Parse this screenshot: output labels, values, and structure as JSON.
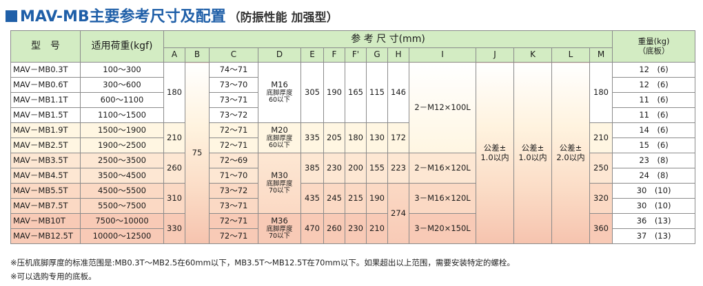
{
  "title": {
    "marker": "■",
    "main": "MAV-MB主要参考尺寸及配置",
    "sub": "（防振性能 加强型）"
  },
  "table": {
    "header": {
      "model": "型　号",
      "load": "适用荷重(kgf)",
      "dims": "参 考 尺 寸(mm)",
      "weight_line1": "重量(kg)",
      "weight_line2": "（底板）",
      "cols": [
        "A",
        "B",
        "C",
        "D",
        "E",
        "F",
        "F'",
        "G",
        "H",
        "I",
        "J",
        "K",
        "L",
        "M"
      ]
    },
    "rows": [
      {
        "model": "MAV－MB0.3T",
        "load": "100～300",
        "c": "74～71",
        "weight": "12　(6)"
      },
      {
        "model": "MAV－MB0.6T",
        "load": "300～600",
        "c": "73～70",
        "weight": "12　(6)"
      },
      {
        "model": "MAV－MB1.1T",
        "load": "600～1100",
        "c": "73～71",
        "weight": "11　(6)"
      },
      {
        "model": "MAV－MB1.5T",
        "load": "1100～1500",
        "c": "73～72",
        "weight": "11　(6)"
      },
      {
        "model": "MAV－MB1.9T",
        "load": "1500～1900",
        "c": "72～71",
        "weight": "14　(6)"
      },
      {
        "model": "MAV－MB2.5T",
        "load": "1900～2500",
        "c": "72～71",
        "weight": "15　(6)"
      },
      {
        "model": "MAV－MB3.5T",
        "load": "2500～3500",
        "c": "72～69",
        "weight": "23　(8)"
      },
      {
        "model": "MAV－MB4.5T",
        "load": "3500～4500",
        "c": "71～70",
        "weight": "24　(8)"
      },
      {
        "model": "MAV－MB5.5T",
        "load": "4500～5500",
        "c": "73～72",
        "weight": "30　(10)"
      },
      {
        "model": "MAV－MB7.5T",
        "load": "5500～7500",
        "c": "73～71",
        "weight": "30　(10)"
      },
      {
        "model": "MAV－MB10T",
        "load": "7500～10000",
        "c": "72～71",
        "weight": "36　(13)"
      },
      {
        "model": "MAV－MB12.5T",
        "load": "10000～12500",
        "c": "72～71",
        "weight": "37　(13)"
      }
    ],
    "groups": [
      {
        "a": "180",
        "d_bolt": "M16",
        "d_note1": "底脚厚度",
        "d_note2": "60以下",
        "e": "305",
        "f": "190",
        "fp": "165",
        "g": "115",
        "h": "146",
        "m": "180"
      },
      {
        "a": "210",
        "d_bolt": "M20",
        "d_note1": "底脚厚度",
        "d_note2": "60以下",
        "e": "335",
        "f": "205",
        "fp": "180",
        "g": "130",
        "h": "172",
        "m": "210"
      },
      {
        "a": "260",
        "e": "385",
        "f": "230",
        "fp": "200",
        "g": "155",
        "h": "223",
        "m": "250"
      },
      {
        "a": "310",
        "e": "435",
        "f": "245",
        "fp": "215",
        "g": "190",
        "m": "320"
      },
      {
        "a": "330",
        "d_bolt": "M36",
        "d_note1": "底脚厚度",
        "d_note2": "70以下",
        "e": "470",
        "f": "260",
        "fp": "230",
        "g": "210",
        "m": "360"
      }
    ],
    "d_m30": {
      "bolt": "M30",
      "note1": "底脚厚度",
      "note2": "70以下"
    },
    "b": "75",
    "h_274": "274",
    "i": [
      "2－M12×100L",
      "2－M16×120L",
      "3－M16×120L",
      "3－M20×150L"
    ],
    "j": {
      "line1": "公差±",
      "line2": "1.0以内"
    },
    "k": {
      "line1": "公差±",
      "line2": "1.0以内"
    },
    "l": {
      "line1": "公差±",
      "line2": "2.0以内"
    }
  },
  "notes": [
    "※压机底脚厚度的标准范围是:MB0.3T～MB2.5在60mm以下，MB3.5T～MB12.5T在70mm以下。如果超出以上范围，需要安装特定的螺栓。",
    "※可以选购专用的底板。"
  ]
}
